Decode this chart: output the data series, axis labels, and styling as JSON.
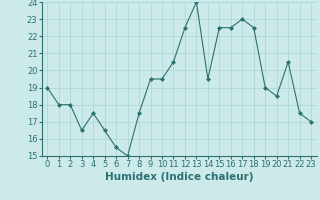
{
  "xlabel": "Humidex (Indice chaleur)",
  "x": [
    0,
    1,
    2,
    3,
    4,
    5,
    6,
    7,
    8,
    9,
    10,
    11,
    12,
    13,
    14,
    15,
    16,
    17,
    18,
    19,
    20,
    21,
    22,
    23
  ],
  "y": [
    19.0,
    18.0,
    18.0,
    16.5,
    17.5,
    16.5,
    15.5,
    15.0,
    17.5,
    19.5,
    19.5,
    20.5,
    22.5,
    24.0,
    19.5,
    22.5,
    22.5,
    23.0,
    22.5,
    19.0,
    18.5,
    20.5,
    17.5,
    17.0
  ],
  "ylim": [
    15,
    24
  ],
  "xlim": [
    -0.5,
    23.5
  ],
  "yticks": [
    15,
    16,
    17,
    18,
    19,
    20,
    21,
    22,
    23,
    24
  ],
  "xticks": [
    0,
    1,
    2,
    3,
    4,
    5,
    6,
    7,
    8,
    9,
    10,
    11,
    12,
    13,
    14,
    15,
    16,
    17,
    18,
    19,
    20,
    21,
    22,
    23
  ],
  "line_color": "#2d7070",
  "marker_color": "#2d7070",
  "bg_color": "#cceaea",
  "grid_color": "#aad4d4",
  "text_color": "#2d7070",
  "tick_label_fontsize": 6.0,
  "xlabel_fontsize": 7.5
}
